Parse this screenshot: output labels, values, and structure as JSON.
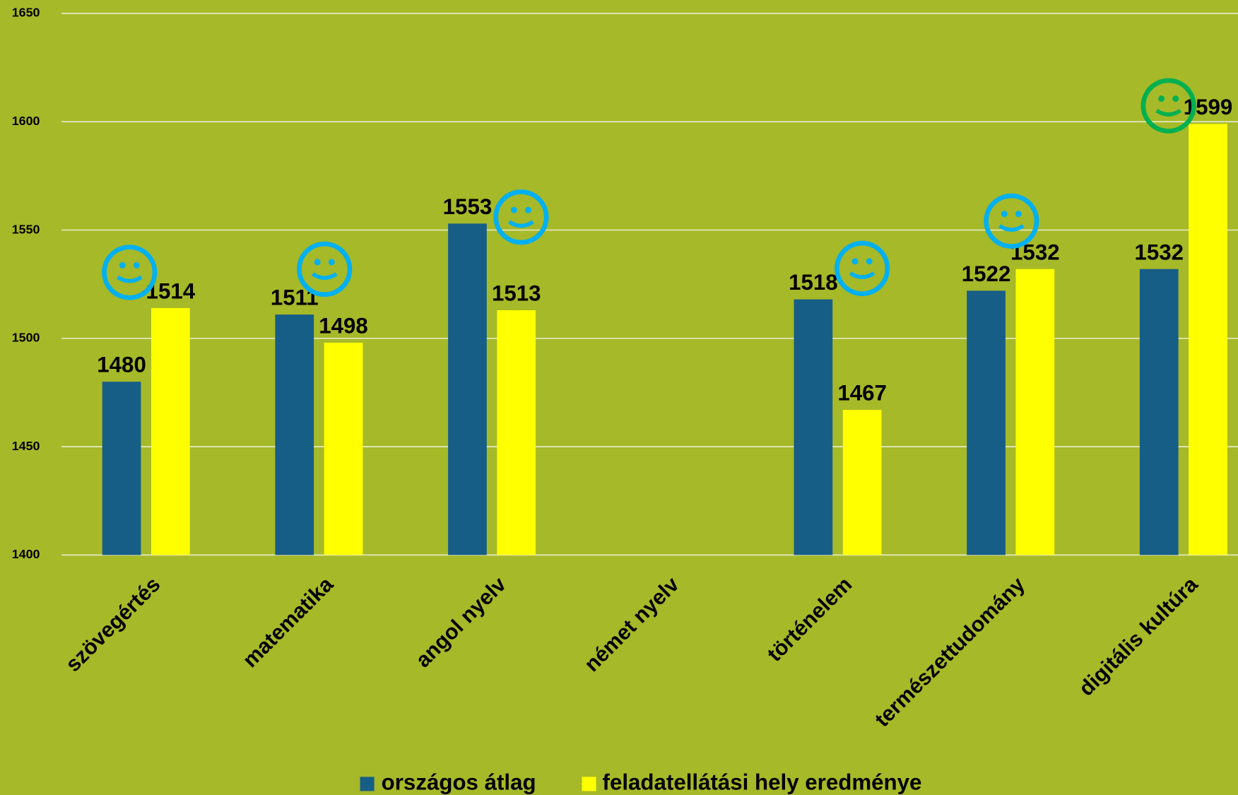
{
  "chart_data": {
    "type": "bar",
    "categories": [
      "szövegértés",
      "matematika",
      "angol nyelv",
      "német nyelv",
      "történelem",
      "természettudomány",
      "digitális kultúra"
    ],
    "series": [
      {
        "name": "országos átlag",
        "color": "#175e86",
        "values": [
          1480,
          1511,
          1553,
          null,
          1518,
          1522,
          1532
        ]
      },
      {
        "name": "feladatellátási hely eredménye",
        "color": "#ffff00",
        "values": [
          1514,
          1498,
          1513,
          null,
          1467,
          1532,
          1599
        ]
      }
    ],
    "ylim": [
      1400,
      1650
    ],
    "yticks": [
      1400,
      1450,
      1500,
      1550,
      1600,
      1650
    ],
    "grid": true,
    "legend": "bottom"
  }
}
